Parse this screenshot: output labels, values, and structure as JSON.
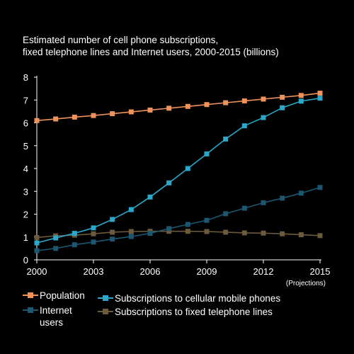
{
  "chart_data": {
    "type": "line",
    "title_lines": [
      "Estimated number of cell phone subscriptions,",
      "fixed telephone lines and Internet users, 2000-2015 (billions)"
    ],
    "x": [
      2000,
      2001,
      2002,
      2003,
      2004,
      2005,
      2006,
      2007,
      2008,
      2009,
      2010,
      2011,
      2012,
      2013,
      2014,
      2015
    ],
    "xticks": [
      "2000",
      "2003",
      "2006",
      "2009",
      "2012",
      "2015"
    ],
    "yticks": [
      "0",
      "1",
      "2",
      "3",
      "4",
      "5",
      "6",
      "7",
      "8"
    ],
    "ylim": [
      0,
      8
    ],
    "xlim": [
      2000,
      2015
    ],
    "x_note": "(Projections)",
    "grid": false,
    "series": [
      {
        "name": "Population",
        "color": "#f0935a",
        "values": [
          6.1,
          6.17,
          6.25,
          6.32,
          6.4,
          6.48,
          6.56,
          6.64,
          6.72,
          6.8,
          6.88,
          6.96,
          7.04,
          7.12,
          7.2,
          7.3
        ]
      },
      {
        "name": "Subscriptions to cellular mobile phones",
        "color": "#2aa7c9",
        "values": [
          0.74,
          0.96,
          1.16,
          1.4,
          1.77,
          2.2,
          2.75,
          3.37,
          4.0,
          4.64,
          5.29,
          5.87,
          6.23,
          6.66,
          6.95,
          7.08
        ]
      },
      {
        "name": "Internet users",
        "color": "#1c5670",
        "values": [
          0.4,
          0.5,
          0.66,
          0.78,
          0.91,
          1.02,
          1.16,
          1.37,
          1.55,
          1.73,
          2.02,
          2.26,
          2.5,
          2.7,
          2.92,
          3.17
        ]
      },
      {
        "name": "Subscriptions to fixed telephone lines",
        "color": "#6b5a3c",
        "values": [
          0.98,
          1.05,
          1.08,
          1.14,
          1.21,
          1.24,
          1.25,
          1.25,
          1.25,
          1.24,
          1.21,
          1.18,
          1.17,
          1.14,
          1.1,
          1.06
        ]
      }
    ],
    "legend": [
      {
        "series": "Population",
        "label_lines": [
          "Population"
        ]
      },
      {
        "series": "Internet users",
        "label_lines": [
          "Internet",
          "users"
        ]
      },
      {
        "series": "Subscriptions to cellular mobile phones",
        "label_lines": [
          "Subscriptions to cellular mobile phones"
        ]
      },
      {
        "series": "Subscriptions to fixed telephone lines",
        "label_lines": [
          "Subscriptions to fixed telephone lines"
        ]
      }
    ]
  }
}
